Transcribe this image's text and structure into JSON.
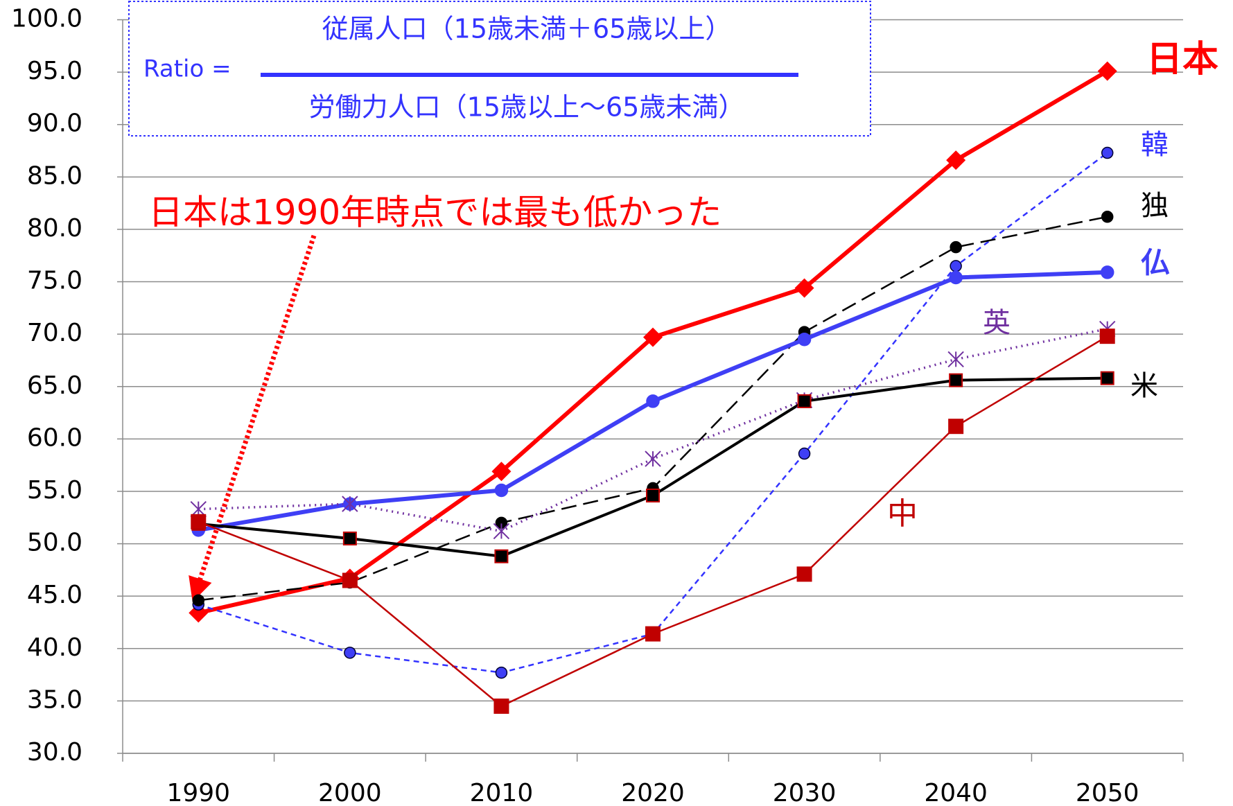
{
  "chart_data": {
    "type": "line",
    "annotation": "日本は1990年時点では最も低かった",
    "formula": {
      "lhs": "Ratio =",
      "numerator": "従属人口（15歳未満＋65歳以上）",
      "denominator": "労働力人口（15歳以上～65歳未満）"
    },
    "categories": [
      "1990",
      "2000",
      "2010",
      "2020",
      "2030",
      "2040",
      "2050"
    ],
    "series": [
      {
        "name": "日本",
        "color": "#ff0000",
        "values": [
          43.4,
          46.7,
          56.9,
          69.7,
          74.4,
          86.6,
          95.1
        ]
      },
      {
        "name": "韓",
        "color": "#3333ff",
        "values": [
          44.2,
          39.6,
          37.7,
          41.4,
          58.6,
          76.5,
          87.3
        ]
      },
      {
        "name": "独",
        "color": "#000000",
        "values": [
          44.6,
          46.3,
          52.0,
          55.3,
          70.2,
          78.3,
          81.2
        ]
      },
      {
        "name": "仏",
        "color": "#3f3ff5",
        "values": [
          51.3,
          53.8,
          55.1,
          63.6,
          69.5,
          75.4,
          75.9
        ]
      },
      {
        "name": "英",
        "color": "#7030a0",
        "values": [
          53.3,
          53.8,
          51.2,
          58.1,
          63.7,
          67.6,
          70.5
        ]
      },
      {
        "name": "米",
        "color": "#000000",
        "values": [
          51.9,
          50.5,
          48.8,
          54.6,
          63.6,
          65.6,
          65.8
        ]
      },
      {
        "name": "中",
        "color": "#c00000",
        "values": [
          52.1,
          46.5,
          34.5,
          41.4,
          47.1,
          61.2,
          69.8
        ]
      }
    ],
    "ylim": [
      30,
      100
    ],
    "yticks": [
      {
        "value": 30,
        "label": "30.0"
      },
      {
        "value": 35,
        "label": "35.0"
      },
      {
        "value": 40,
        "label": "40.0"
      },
      {
        "value": 45,
        "label": "45.0"
      },
      {
        "value": 50,
        "label": "50.0"
      },
      {
        "value": 55,
        "label": "55.0"
      },
      {
        "value": 60,
        "label": "60.0"
      },
      {
        "value": 65,
        "label": "65.0"
      },
      {
        "value": 70,
        "label": "70.0"
      },
      {
        "value": 75,
        "label": "75.0"
      },
      {
        "value": 80,
        "label": "80.0"
      },
      {
        "value": 85,
        "label": "85.0"
      },
      {
        "value": 90,
        "label": "90.0"
      },
      {
        "value": 95,
        "label": "95.0"
      },
      {
        "value": 100,
        "label": "100.0"
      }
    ],
    "grid": true
  }
}
